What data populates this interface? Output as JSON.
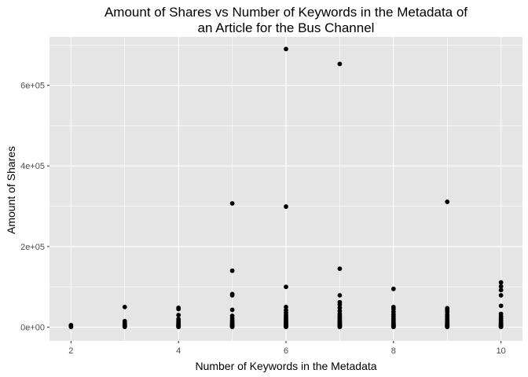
{
  "chart_data": {
    "type": "scatter",
    "title": "Amount of Shares vs Number of Keywords in the Metadata of an Article for the Bus Channel",
    "title_lines": [
      "Amount of Shares vs Number of Keywords in the Metadata of",
      "an Article for the Bus Channel"
    ],
    "xlabel": "Number of Keywords in the Metadata",
    "ylabel": "Amount of Shares",
    "xlim": [
      1.6,
      10.4
    ],
    "ylim": [
      -34000,
      720000
    ],
    "x_ticks": [
      2,
      4,
      6,
      8,
      10
    ],
    "x_tick_labels": [
      "2",
      "4",
      "6",
      "8",
      "10"
    ],
    "y_ticks": [
      0,
      200000,
      400000,
      600000
    ],
    "y_tick_labels": [
      "0e+00",
      "2e+05",
      "4e+05",
      "6e+05"
    ],
    "grid": true,
    "colors": {
      "panel": "#e5e5e5",
      "grid": "#ffffff",
      "point": "#000000",
      "tick": "#4d4d4d"
    },
    "points": [
      {
        "x": 2,
        "y": 5000
      },
      {
        "x": 2,
        "y": 2000
      },
      {
        "x": 2,
        "y": 800
      },
      {
        "x": 3,
        "y": 50000
      },
      {
        "x": 3,
        "y": 15000
      },
      {
        "x": 3,
        "y": 10000
      },
      {
        "x": 3,
        "y": 6000
      },
      {
        "x": 3,
        "y": 4000
      },
      {
        "x": 3,
        "y": 2500
      },
      {
        "x": 3,
        "y": 1500
      },
      {
        "x": 3,
        "y": 800
      },
      {
        "x": 4,
        "y": 48000
      },
      {
        "x": 4,
        "y": 45000
      },
      {
        "x": 4,
        "y": 30000
      },
      {
        "x": 4,
        "y": 20000
      },
      {
        "x": 4,
        "y": 16000
      },
      {
        "x": 4,
        "y": 12000
      },
      {
        "x": 4,
        "y": 9000
      },
      {
        "x": 4,
        "y": 7000
      },
      {
        "x": 4,
        "y": 5000
      },
      {
        "x": 4,
        "y": 3500
      },
      {
        "x": 4,
        "y": 2500
      },
      {
        "x": 4,
        "y": 1500
      },
      {
        "x": 4,
        "y": 700
      },
      {
        "x": 5,
        "y": 307000
      },
      {
        "x": 5,
        "y": 140000
      },
      {
        "x": 5,
        "y": 82000
      },
      {
        "x": 5,
        "y": 79000
      },
      {
        "x": 5,
        "y": 43000
      },
      {
        "x": 5,
        "y": 28000
      },
      {
        "x": 5,
        "y": 22000
      },
      {
        "x": 5,
        "y": 17000
      },
      {
        "x": 5,
        "y": 14000
      },
      {
        "x": 5,
        "y": 11000
      },
      {
        "x": 5,
        "y": 8500
      },
      {
        "x": 5,
        "y": 6500
      },
      {
        "x": 5,
        "y": 5000
      },
      {
        "x": 5,
        "y": 3500
      },
      {
        "x": 5,
        "y": 2500
      },
      {
        "x": 5,
        "y": 1500
      },
      {
        "x": 5,
        "y": 800
      },
      {
        "x": 6,
        "y": 690000
      },
      {
        "x": 6,
        "y": 299000
      },
      {
        "x": 6,
        "y": 100000
      },
      {
        "x": 6,
        "y": 50000
      },
      {
        "x": 6,
        "y": 42000
      },
      {
        "x": 6,
        "y": 36000
      },
      {
        "x": 6,
        "y": 31000
      },
      {
        "x": 6,
        "y": 27000
      },
      {
        "x": 6,
        "y": 23000
      },
      {
        "x": 6,
        "y": 20000
      },
      {
        "x": 6,
        "y": 17000
      },
      {
        "x": 6,
        "y": 14000
      },
      {
        "x": 6,
        "y": 11500
      },
      {
        "x": 6,
        "y": 9500
      },
      {
        "x": 6,
        "y": 7500
      },
      {
        "x": 6,
        "y": 6000
      },
      {
        "x": 6,
        "y": 4500
      },
      {
        "x": 6,
        "y": 3200
      },
      {
        "x": 6,
        "y": 2200
      },
      {
        "x": 6,
        "y": 1300
      },
      {
        "x": 6,
        "y": 600
      },
      {
        "x": 7,
        "y": 653000
      },
      {
        "x": 7,
        "y": 145000
      },
      {
        "x": 7,
        "y": 79000
      },
      {
        "x": 7,
        "y": 62000
      },
      {
        "x": 7,
        "y": 56000
      },
      {
        "x": 7,
        "y": 48000
      },
      {
        "x": 7,
        "y": 40000
      },
      {
        "x": 7,
        "y": 33000
      },
      {
        "x": 7,
        "y": 28000
      },
      {
        "x": 7,
        "y": 24000
      },
      {
        "x": 7,
        "y": 20000
      },
      {
        "x": 7,
        "y": 16000
      },
      {
        "x": 7,
        "y": 13000
      },
      {
        "x": 7,
        "y": 10500
      },
      {
        "x": 7,
        "y": 8500
      },
      {
        "x": 7,
        "y": 6500
      },
      {
        "x": 7,
        "y": 5000
      },
      {
        "x": 7,
        "y": 3500
      },
      {
        "x": 7,
        "y": 2300
      },
      {
        "x": 7,
        "y": 1300
      },
      {
        "x": 7,
        "y": 600
      },
      {
        "x": 8,
        "y": 95000
      },
      {
        "x": 8,
        "y": 50000
      },
      {
        "x": 8,
        "y": 45000
      },
      {
        "x": 8,
        "y": 38000
      },
      {
        "x": 8,
        "y": 32000
      },
      {
        "x": 8,
        "y": 27000
      },
      {
        "x": 8,
        "y": 22000
      },
      {
        "x": 8,
        "y": 18000
      },
      {
        "x": 8,
        "y": 14000
      },
      {
        "x": 8,
        "y": 11000
      },
      {
        "x": 8,
        "y": 8500
      },
      {
        "x": 8,
        "y": 6500
      },
      {
        "x": 8,
        "y": 5000
      },
      {
        "x": 8,
        "y": 3500
      },
      {
        "x": 8,
        "y": 2300
      },
      {
        "x": 8,
        "y": 1300
      },
      {
        "x": 8,
        "y": 600
      },
      {
        "x": 9,
        "y": 311000
      },
      {
        "x": 9,
        "y": 47000
      },
      {
        "x": 9,
        "y": 42000
      },
      {
        "x": 9,
        "y": 37000
      },
      {
        "x": 9,
        "y": 31000
      },
      {
        "x": 9,
        "y": 26000
      },
      {
        "x": 9,
        "y": 21000
      },
      {
        "x": 9,
        "y": 17000
      },
      {
        "x": 9,
        "y": 13500
      },
      {
        "x": 9,
        "y": 10500
      },
      {
        "x": 9,
        "y": 8000
      },
      {
        "x": 9,
        "y": 6000
      },
      {
        "x": 9,
        "y": 4500
      },
      {
        "x": 9,
        "y": 3200
      },
      {
        "x": 9,
        "y": 2200
      },
      {
        "x": 9,
        "y": 1200
      },
      {
        "x": 9,
        "y": 600
      },
      {
        "x": 10,
        "y": 111000
      },
      {
        "x": 10,
        "y": 101000
      },
      {
        "x": 10,
        "y": 92000
      },
      {
        "x": 10,
        "y": 79000
      },
      {
        "x": 10,
        "y": 53000
      },
      {
        "x": 10,
        "y": 33000
      },
      {
        "x": 10,
        "y": 27000
      },
      {
        "x": 10,
        "y": 22000
      },
      {
        "x": 10,
        "y": 18000
      },
      {
        "x": 10,
        "y": 14000
      },
      {
        "x": 10,
        "y": 11000
      },
      {
        "x": 10,
        "y": 8500
      },
      {
        "x": 10,
        "y": 6500
      },
      {
        "x": 10,
        "y": 5000
      },
      {
        "x": 10,
        "y": 3500
      },
      {
        "x": 10,
        "y": 2300
      },
      {
        "x": 10,
        "y": 1300
      },
      {
        "x": 10,
        "y": 600
      }
    ]
  }
}
